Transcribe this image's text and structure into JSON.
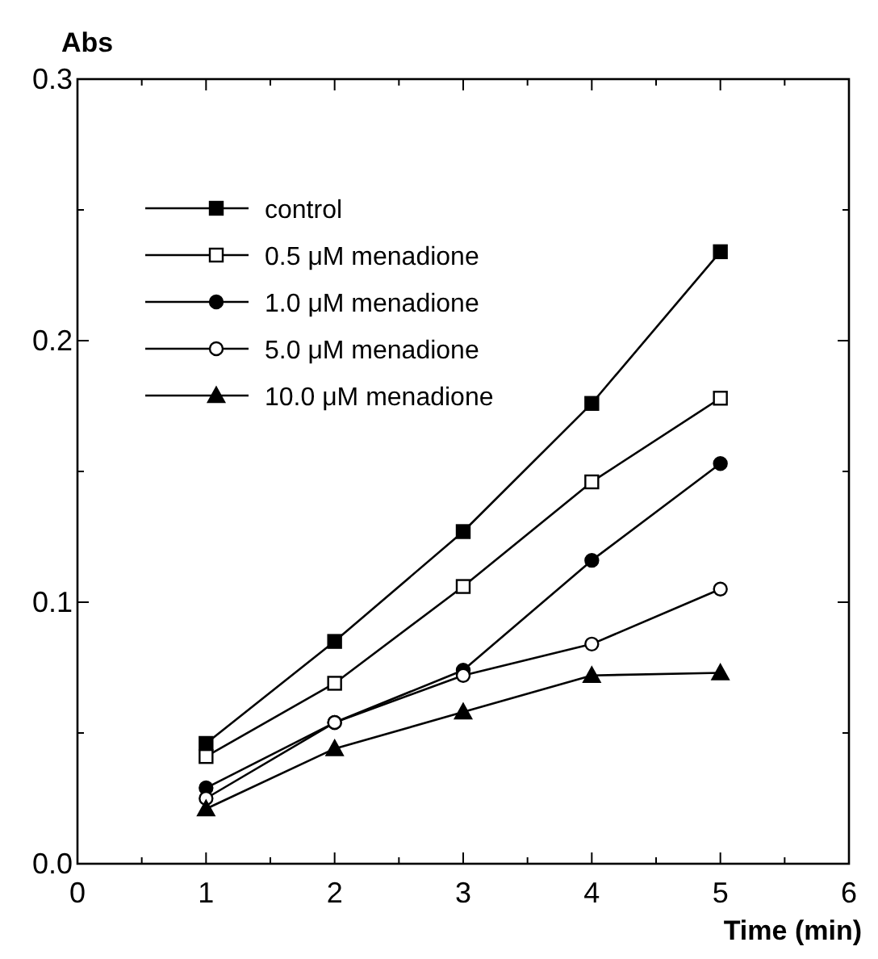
{
  "chart_data": {
    "type": "line",
    "xlabel": "Time (min)",
    "ylabel": "Abs",
    "x": [
      1,
      2,
      3,
      4,
      5
    ],
    "xlim": [
      0,
      6
    ],
    "xticks": [
      0,
      {
        "value": 0.5,
        "label": null
      },
      1,
      {
        "value": 1.5,
        "label": null
      },
      2,
      {
        "value": 2.5,
        "label": null
      },
      3,
      {
        "value": 3.5,
        "label": null
      },
      4,
      {
        "value": 4.5,
        "label": null
      },
      5,
      {
        "value": 5.5,
        "label": null
      },
      6
    ],
    "ylim": [
      0,
      0.3
    ],
    "yticks": [
      {
        "value": 0,
        "label": "0.0"
      },
      {
        "value": 0.05,
        "label": null
      },
      0.1,
      {
        "value": 0.15,
        "label": null
      },
      0.2,
      {
        "value": 0.25,
        "label": null
      },
      0.3
    ],
    "grid": false,
    "legend": "top left",
    "line_style": "solid",
    "series": [
      {
        "name": "control",
        "color": "#000000",
        "marker": "square",
        "values": [
          0.046,
          0.085,
          0.127,
          0.176,
          0.234
        ]
      },
      {
        "name": "0.5 μM menadione",
        "color": "#000000",
        "marker": "square-open",
        "values": [
          0.041,
          0.069,
          0.106,
          0.146,
          0.178
        ]
      },
      {
        "name": "1.0 μM menadione",
        "color": "#000000",
        "marker": "circle",
        "values": [
          0.029,
          0.054,
          0.074,
          0.116,
          0.153
        ]
      },
      {
        "name": "5.0 μM menadione",
        "color": "#000000",
        "marker": "circle-open",
        "values": [
          0.025,
          0.054,
          0.072,
          0.084,
          0.105
        ]
      },
      {
        "name": "10.0 μM menadione",
        "color": "#000000",
        "marker": "triangle",
        "values": [
          0.021,
          0.044,
          0.058,
          0.072,
          0.073
        ]
      }
    ]
  }
}
